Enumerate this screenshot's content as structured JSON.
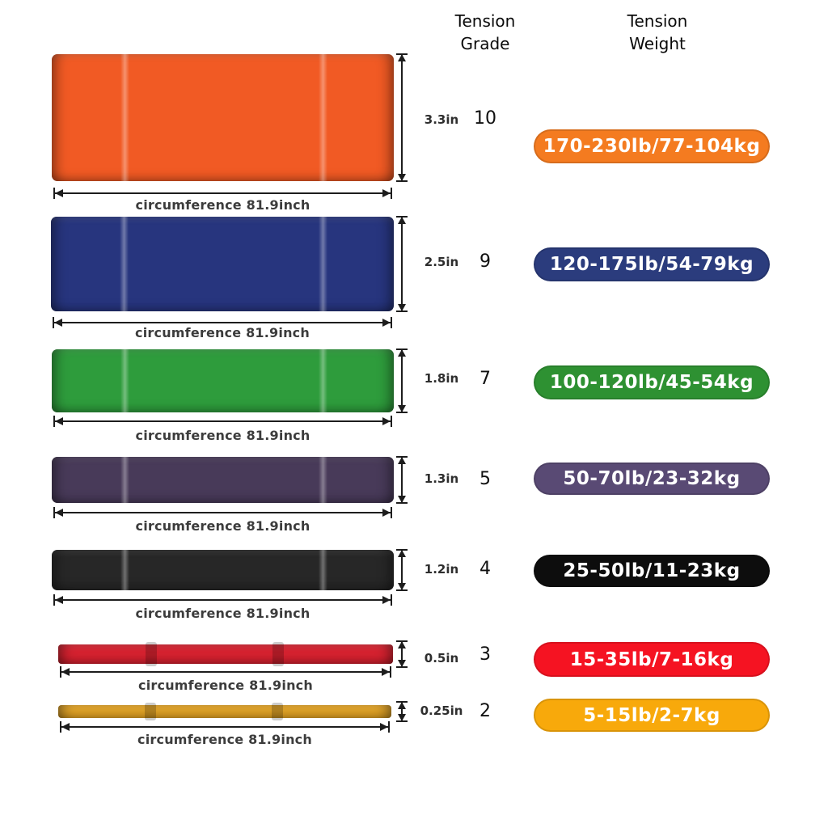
{
  "columns": {
    "grade_header": {
      "line1": "Tension",
      "line2": "Grade"
    },
    "weight_header": {
      "line1": "Tension",
      "line2": "Weight"
    }
  },
  "bands": [
    {
      "name": "orange",
      "band_color": "#F15A24",
      "badge_color": "#F47B20",
      "width_label": "3.3in",
      "tension_grade": "10",
      "tension_weight": "170-230lb/77-104kg",
      "circumference_label": "circumference 81.9inch"
    },
    {
      "name": "navy",
      "band_color": "#27357E",
      "badge_color": "#2B3C7D",
      "width_label": "2.5in",
      "tension_grade": "9",
      "tension_weight": "120-175lb/54-79kg",
      "circumference_label": "circumference 81.9inch"
    },
    {
      "name": "green",
      "band_color": "#2E9C3C",
      "badge_color": "#2E9132",
      "width_label": "1.8in",
      "tension_grade": "7",
      "tension_weight": "100-120lb/45-54kg",
      "circumference_label": "circumference 81.9inch"
    },
    {
      "name": "purple",
      "band_color": "#483A59",
      "badge_color": "#594A74",
      "width_label": "1.3in",
      "tension_grade": "5",
      "tension_weight": "50-70lb/23-32kg",
      "circumference_label": "circumference 81.9inch"
    },
    {
      "name": "black",
      "band_color": "#272727",
      "badge_color": "#0D0D0D",
      "width_label": "1.2in",
      "tension_grade": "4",
      "tension_weight": "25-50lb/11-23kg",
      "circumference_label": "circumference 81.9inch"
    },
    {
      "name": "red",
      "band_color": "#D72230",
      "badge_color": "#F51322",
      "width_label": "0.5in",
      "tension_grade": "3",
      "tension_weight": "15-35lb/7-16kg",
      "circumference_label": "circumference 81.9inch"
    },
    {
      "name": "yellow",
      "band_color": "#E9A826",
      "badge_color": "#F8A90B",
      "width_label": "0.25in",
      "tension_grade": "2",
      "tension_weight": "5-15lb/2-7kg",
      "circumference_label": "circumference 81.9inch"
    }
  ]
}
